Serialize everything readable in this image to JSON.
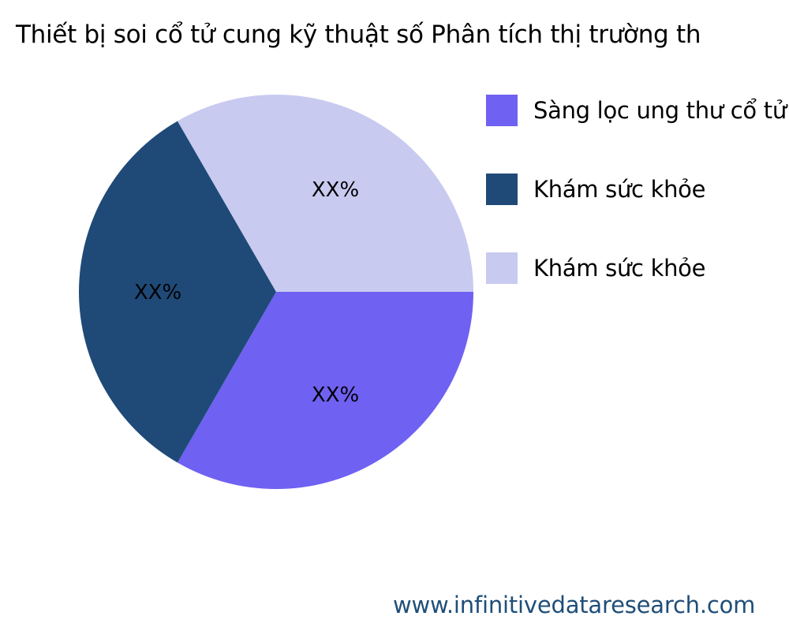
{
  "chart_data": {
    "type": "pie",
    "title": "Thiết bị soi cổ tử cung kỹ thuật số Phân tích thị trường th",
    "categories": [
      "Sàng lọc ung thư cổ tử",
      "Khám sức khỏe",
      "Khám sức khỏe"
    ],
    "values": [
      33.33,
      33.33,
      33.33
    ],
    "data_labels": [
      "XX%",
      "XX%",
      "XX%"
    ],
    "colors": [
      "#6f61f2",
      "#1f4a78",
      "#c8caf0"
    ],
    "legend_position": "right",
    "start_angle": "3 o'clock, clockwise"
  },
  "footer": {
    "source": "www.infinitivedataresearch.com"
  }
}
